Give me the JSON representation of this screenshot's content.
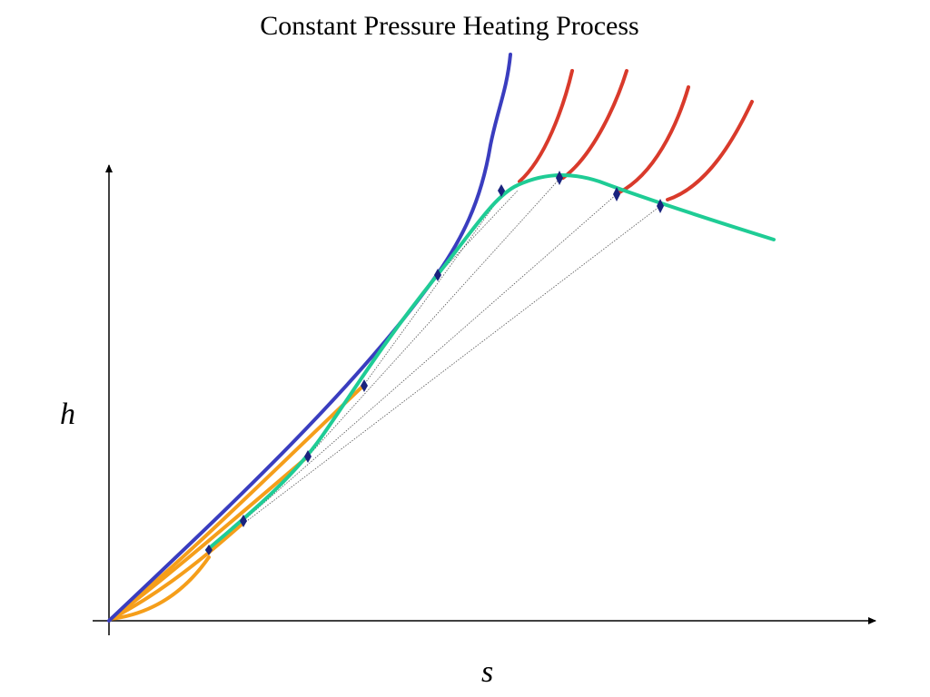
{
  "title": "Constant Pressure Heating Process",
  "axes": {
    "x_label": "s",
    "y_label": "h"
  },
  "colors": {
    "axis": "#000000",
    "saturation_line": "#3a3dbf",
    "superheated_isobars": "#d93a2b",
    "compressed_liquid_isobars": "#f59e1a",
    "process_curve": "#1fcc95",
    "state_points": "#1a237e",
    "tie_lines": "#555555"
  },
  "icons": {
    "state_point": "navy-diamond-marker"
  }
}
